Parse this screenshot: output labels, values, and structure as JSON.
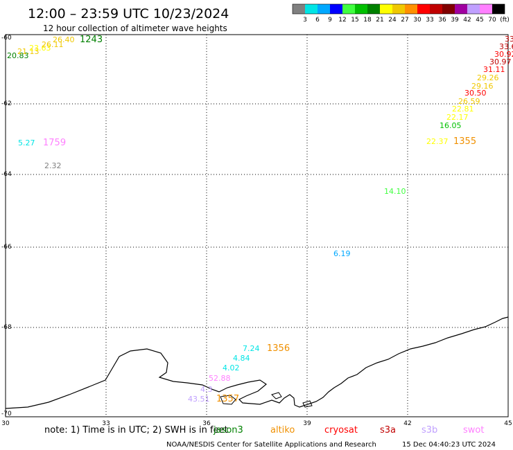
{
  "title": "12:00 – 23:59 UTC 10/23/2024",
  "subtitle": "12 hour collection of altimeter wave heights",
  "colorbar": {
    "colors": [
      "#808080",
      "#00e5e5",
      "#00a8ff",
      "#0000ff",
      "#40ff40",
      "#00c000",
      "#008000",
      "#ffff00",
      "#f0c800",
      "#ff9000",
      "#ff0000",
      "#c00000",
      "#800000",
      "#a000a0",
      "#c0a0ff",
      "#ff80ff",
      "#000000"
    ],
    "labels": [
      "3",
      "6",
      "9",
      "12",
      "15",
      "18",
      "21",
      "24",
      "27",
      "30",
      "33",
      "36",
      "39",
      "42",
      "45",
      "70",
      "(ft)"
    ]
  },
  "lat_labels": [
    "-60",
    "-62",
    "-64",
    "-66",
    "-68",
    "-70"
  ],
  "lon_labels": [
    "30",
    "33",
    "36",
    "39",
    "42",
    "45"
  ],
  "observations": [
    {
      "text": "20.83",
      "color": "#008000"
    },
    {
      "text": "21.13",
      "color": "#f0c800"
    },
    {
      "text": "23.63",
      "color": "#ffff00"
    },
    {
      "text": "26.11",
      "color": "#f0c800"
    },
    {
      "text": "26.40",
      "color": "#f0c800"
    },
    {
      "text": "1243",
      "color": "#008000"
    },
    {
      "text": "5.27",
      "color": "#00e5e5"
    },
    {
      "text": "1759",
      "color": "#ff80ff"
    },
    {
      "text": "2.32",
      "color": "#808080"
    },
    {
      "text": "33",
      "color": "#c00000"
    },
    {
      "text": "33.6",
      "color": "#c00000"
    },
    {
      "text": "30.92",
      "color": "#ff0000"
    },
    {
      "text": "30.97",
      "color": "#c00000"
    },
    {
      "text": "31.11",
      "color": "#ff0000"
    },
    {
      "text": "29.26",
      "color": "#f0c800"
    },
    {
      "text": "29.16",
      "color": "#f0c800"
    },
    {
      "text": "30.50",
      "color": "#ff0000"
    },
    {
      "text": "26.59",
      "color": "#f0c800"
    },
    {
      "text": "22.81",
      "color": "#ffff00"
    },
    {
      "text": "22.17",
      "color": "#ffff00"
    },
    {
      "text": "16.05",
      "color": "#00c000"
    },
    {
      "text": "22.37",
      "color": "#ffff00"
    },
    {
      "text": "1355",
      "color": "#f09000"
    },
    {
      "text": "14.10",
      "color": "#40ff40"
    },
    {
      "text": "6.19",
      "color": "#00a8ff"
    },
    {
      "text": "7.24",
      "color": "#00e5e5"
    },
    {
      "text": "1356",
      "color": "#f09000"
    },
    {
      "text": "4.84",
      "color": "#00e5e5"
    },
    {
      "text": "4.02",
      "color": "#00e5e5"
    },
    {
      "text": "52.88",
      "color": "#ff80ff"
    },
    {
      "text": "4.3",
      "color": "#c0a0ff"
    },
    {
      "text": "43.51",
      "color": "#c0a0ff"
    },
    {
      "text": "1357",
      "color": "#f09000"
    }
  ],
  "footer_note": "note: 1) Time is in UTC; 2) SWH is in feet",
  "satellites": [
    {
      "name": "jason3",
      "color": "#008000"
    },
    {
      "name": "altiko",
      "color": "#f09000"
    },
    {
      "name": "cryosat",
      "color": "#ff0000"
    },
    {
      "name": "s3a",
      "color": "#c00000"
    },
    {
      "name": "s3b",
      "color": "#c0a0ff"
    },
    {
      "name": "swot",
      "color": "#ff80ff"
    }
  ],
  "credit": "NOAA/NESDIS Center for Satellite Applications and Research",
  "timestamp": "15 Dec 04:40:23 UTC 2024"
}
